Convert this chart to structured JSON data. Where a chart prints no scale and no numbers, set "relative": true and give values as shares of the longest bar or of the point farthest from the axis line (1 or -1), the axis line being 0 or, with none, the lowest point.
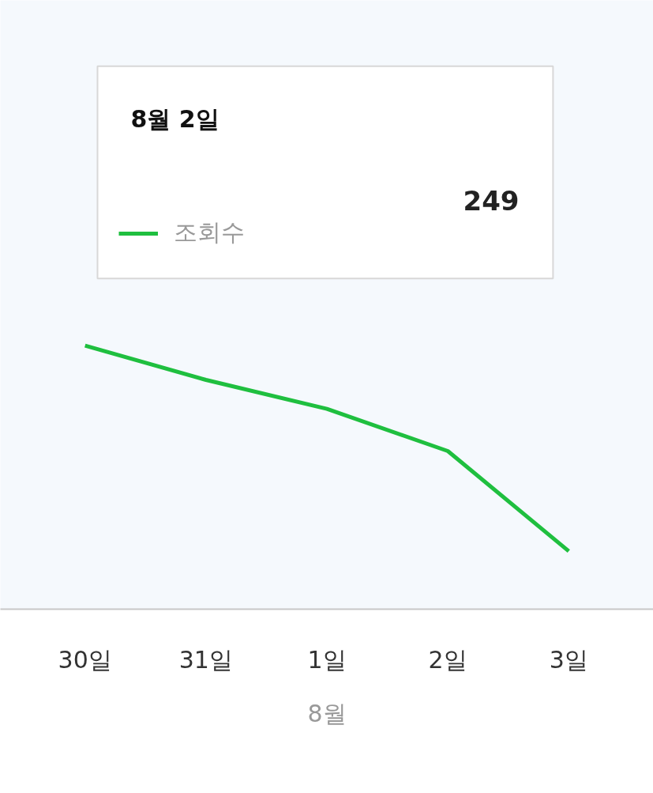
{
  "chart_data": {
    "type": "line",
    "relative": true,
    "xlabel": "8월",
    "categories": [
      "30일",
      "31일",
      "1일",
      "2일",
      "3일"
    ],
    "series": [
      {
        "name": "조회수",
        "color": "#1fbf3f",
        "values": [
          1,
          0.87,
          0.76,
          0.6,
          0.22
        ]
      }
    ],
    "annotations": [
      "8월 2일",
      "249"
    ],
    "grid": false,
    "legend": "top left",
    "marker": "none",
    "line_style": "solid"
  }
}
